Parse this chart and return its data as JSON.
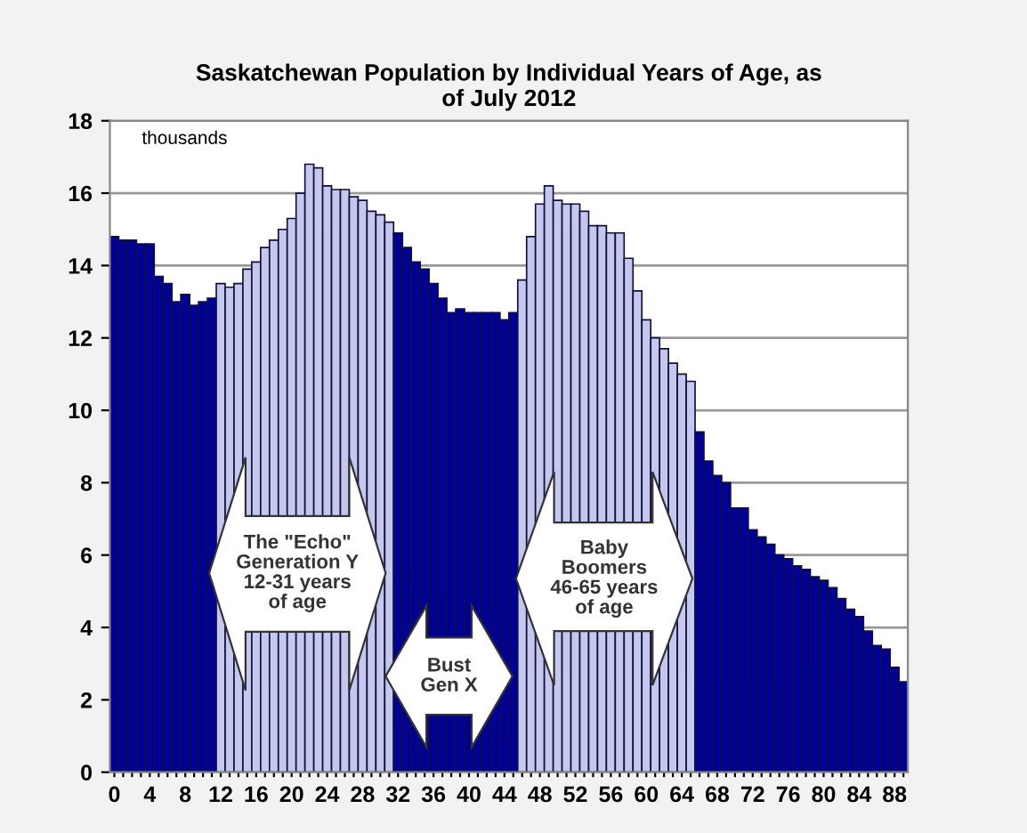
{
  "chart_data": {
    "type": "bar",
    "title": "Saskatchewan Population by Individual Years of Age, as\nof July 2012",
    "ylabel": "thousands",
    "categories": [
      "0",
      null,
      null,
      null,
      "4",
      null,
      null,
      null,
      "8",
      null,
      null,
      null,
      "12",
      null,
      null,
      null,
      "16",
      null,
      null,
      null,
      "20",
      null,
      null,
      null,
      "24",
      null,
      null,
      null,
      "28",
      null,
      null,
      null,
      "32",
      null,
      null,
      null,
      "36",
      null,
      null,
      null,
      "40",
      null,
      null,
      null,
      "44",
      null,
      null,
      null,
      "48",
      null,
      null,
      null,
      "52",
      null,
      null,
      null,
      "56",
      null,
      null,
      null,
      "60",
      null,
      null,
      null,
      "64",
      null,
      null,
      null,
      "68",
      null,
      null,
      null,
      "72",
      null,
      null,
      null,
      "76",
      null,
      null,
      null,
      "80",
      null,
      null,
      null,
      "84",
      null,
      null,
      null,
      "88",
      null
    ],
    "values": [
      14.8,
      14.7,
      14.7,
      14.6,
      14.6,
      13.7,
      13.5,
      13.0,
      13.2,
      12.9,
      13.0,
      13.1,
      13.5,
      13.4,
      13.5,
      13.9,
      14.1,
      14.5,
      14.7,
      15.0,
      15.3,
      16.0,
      16.8,
      16.7,
      16.2,
      16.1,
      16.1,
      15.9,
      15.8,
      15.5,
      15.4,
      15.2,
      14.9,
      14.5,
      14.1,
      13.9,
      13.5,
      13.1,
      12.7,
      12.8,
      12.7,
      12.7,
      12.7,
      12.7,
      12.5,
      12.7,
      13.6,
      14.8,
      15.7,
      16.2,
      15.8,
      15.7,
      15.7,
      15.5,
      15.1,
      15.1,
      14.9,
      14.9,
      14.2,
      13.3,
      12.5,
      12.0,
      11.7,
      11.3,
      11.0,
      10.8,
      9.4,
      8.6,
      8.2,
      8.0,
      7.3,
      7.3,
      6.7,
      6.5,
      6.3,
      6.0,
      5.9,
      5.7,
      5.6,
      5.4,
      5.3,
      5.1,
      4.8,
      4.5,
      4.3,
      3.9,
      3.5,
      3.4,
      2.9,
      2.5
    ],
    "colors": [
      "#000099",
      "#000099",
      "#000099",
      "#000099",
      "#000099",
      "#000099",
      "#000099",
      "#000099",
      "#000099",
      "#000099",
      "#000099",
      "#000099",
      "#c4c8ee",
      "#c4c8ee",
      "#c4c8ee",
      "#c4c8ee",
      "#c4c8ee",
      "#c4c8ee",
      "#c4c8ee",
      "#c4c8ee",
      "#c4c8ee",
      "#c4c8ee",
      "#c4c8ee",
      "#c4c8ee",
      "#c4c8ee",
      "#c4c8ee",
      "#c4c8ee",
      "#c4c8ee",
      "#c4c8ee",
      "#c4c8ee",
      "#c4c8ee",
      "#c4c8ee",
      "#000099",
      "#000099",
      "#000099",
      "#000099",
      "#000099",
      "#000099",
      "#000099",
      "#000099",
      "#000099",
      "#000099",
      "#000099",
      "#000099",
      "#000099",
      "#000099",
      "#c4c8ee",
      "#c4c8ee",
      "#c4c8ee",
      "#c4c8ee",
      "#c4c8ee",
      "#c4c8ee",
      "#c4c8ee",
      "#c4c8ee",
      "#c4c8ee",
      "#c4c8ee",
      "#c4c8ee",
      "#c4c8ee",
      "#c4c8ee",
      "#c4c8ee",
      "#c4c8ee",
      "#c4c8ee",
      "#c4c8ee",
      "#c4c8ee",
      "#c4c8ee",
      "#c4c8ee",
      "#000099",
      "#000099",
      "#000099",
      "#000099",
      "#000099",
      "#000099",
      "#000099",
      "#000099",
      "#000099",
      "#000099",
      "#000099",
      "#000099",
      "#000099",
      "#000099",
      "#000099",
      "#000099",
      "#000099",
      "#000099",
      "#000099",
      "#000099",
      "#000099",
      "#000099",
      "#000099",
      "#000099"
    ],
    "ylim": [
      0,
      18
    ],
    "yticks": [
      0,
      2,
      4,
      6,
      8,
      10,
      12,
      14,
      16,
      18
    ],
    "grid": "y",
    "annotations": [
      "The \"Echo\"\nGeneration Y\n12-31 years\nof age",
      "Bust\nGen X",
      "Baby\nBoomers\n46-65 years\nof age"
    ]
  }
}
